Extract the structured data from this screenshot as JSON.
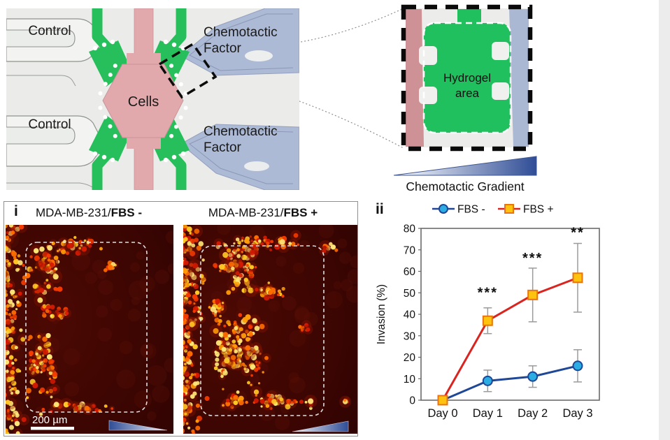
{
  "device_panel": {
    "label_control_top": "Control",
    "label_control_bottom": "Control",
    "label_chemo_top_line1": "Chemotactic",
    "label_chemo_top_line2": "Factor",
    "label_chemo_bottom_line1": "Chemotactic",
    "label_chemo_bottom_line2": "Factor",
    "label_cells": "Cells"
  },
  "zoom_panel": {
    "hydrogel_line1": "Hydrogel",
    "hydrogel_line2": "area",
    "gradient_label": "Chemotactic Gradient",
    "gradient_dark_color": "#2F4D96"
  },
  "panel_i": {
    "index_label": "i",
    "image_left_title_prefix": "MDA-MB-231/",
    "image_left_title_bold": "FBS -",
    "image_right_title_prefix": "MDA-MB-231/",
    "image_right_title_bold": "FBS +",
    "scale_bar_label": "200 µm"
  },
  "panel_ii": {
    "index_label": "ii"
  },
  "chart_data": {
    "type": "line",
    "categories": [
      "Day 0",
      "Day 1",
      "Day 2",
      "Day 3"
    ],
    "series": [
      {
        "name": "FBS -",
        "values": [
          0,
          9,
          11,
          16
        ],
        "errors": [
          0,
          5,
          5,
          7.5
        ],
        "line_color": "#1F4796",
        "marker": "circle",
        "marker_color": "#2BACE2"
      },
      {
        "name": "FBS +",
        "values": [
          0,
          37,
          49,
          57
        ],
        "errors": [
          0,
          6,
          12.5,
          16
        ],
        "line_color": "#D92420",
        "marker": "square",
        "marker_color": "#FFC20E",
        "marker_edge": "#E87511"
      }
    ],
    "annotations": [
      {
        "category_index": 1,
        "text": "***",
        "y": 48
      },
      {
        "category_index": 2,
        "text": "***",
        "y": 64
      },
      {
        "category_index": 3,
        "text": "**",
        "y": 76
      }
    ],
    "ylabel": "Invasion (%)",
    "ylim": [
      0,
      80
    ],
    "ytick_step": 10,
    "legend_position": "top",
    "grid": false
  }
}
